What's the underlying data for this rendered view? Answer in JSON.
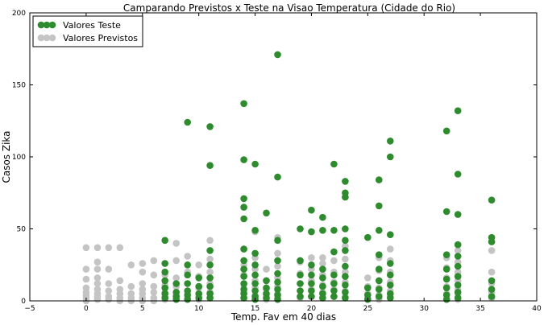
{
  "chart_data": {
    "type": "scatter",
    "title": "Camparando Previstos x Teste na Visao Temperatura (Cidade do Rio)",
    "xlabel": "Temp. Fav em 40 dias",
    "ylabel": "Casos Zika",
    "xlim": [
      -5,
      40
    ],
    "ylim": [
      0,
      200
    ],
    "xticks": [
      "−5",
      "0",
      "5",
      "10",
      "15",
      "20",
      "25",
      "30",
      "35",
      "40"
    ],
    "xtick_values": [
      -5,
      0,
      5,
      10,
      15,
      20,
      25,
      30,
      35,
      40
    ],
    "yticks": [
      "0",
      "50",
      "100",
      "150",
      "200"
    ],
    "ytick_values": [
      0,
      50,
      100,
      150,
      200
    ],
    "grid": false,
    "legend_position": "top-left",
    "series": [
      {
        "name": "Valores Teste",
        "color": "#2e8b2e",
        "points": [
          [
            7,
            42
          ],
          [
            7,
            26
          ],
          [
            7,
            20
          ],
          [
            7,
            14
          ],
          [
            7,
            9
          ],
          [
            7,
            5
          ],
          [
            7,
            2
          ],
          [
            8,
            12
          ],
          [
            8,
            6
          ],
          [
            8,
            3
          ],
          [
            8,
            1
          ],
          [
            9,
            124
          ],
          [
            9,
            25
          ],
          [
            9,
            18
          ],
          [
            9,
            12
          ],
          [
            9,
            7
          ],
          [
            9,
            4
          ],
          [
            9,
            1
          ],
          [
            10,
            16
          ],
          [
            10,
            10
          ],
          [
            10,
            5
          ],
          [
            10,
            2
          ],
          [
            11,
            121
          ],
          [
            11,
            94
          ],
          [
            11,
            35
          ],
          [
            11,
            25
          ],
          [
            11,
            16
          ],
          [
            11,
            10
          ],
          [
            11,
            5
          ],
          [
            11,
            2
          ],
          [
            14,
            137
          ],
          [
            14,
            98
          ],
          [
            14,
            71
          ],
          [
            14,
            65
          ],
          [
            14,
            57
          ],
          [
            14,
            36
          ],
          [
            14,
            28
          ],
          [
            14,
            22
          ],
          [
            14,
            17
          ],
          [
            14,
            12
          ],
          [
            14,
            8
          ],
          [
            14,
            5
          ],
          [
            14,
            2
          ],
          [
            15,
            95
          ],
          [
            15,
            49
          ],
          [
            15,
            33
          ],
          [
            15,
            25
          ],
          [
            15,
            18
          ],
          [
            15,
            12
          ],
          [
            15,
            7
          ],
          [
            15,
            3
          ],
          [
            15,
            1
          ],
          [
            16,
            61
          ],
          [
            16,
            14
          ],
          [
            16,
            9
          ],
          [
            16,
            5
          ],
          [
            16,
            2
          ],
          [
            17,
            171
          ],
          [
            17,
            86
          ],
          [
            17,
            42
          ],
          [
            17,
            28
          ],
          [
            17,
            19
          ],
          [
            17,
            13
          ],
          [
            17,
            8
          ],
          [
            17,
            4
          ],
          [
            17,
            1
          ],
          [
            19,
            50
          ],
          [
            19,
            28
          ],
          [
            19,
            18
          ],
          [
            19,
            12
          ],
          [
            19,
            7
          ],
          [
            19,
            3
          ],
          [
            20,
            63
          ],
          [
            20,
            48
          ],
          [
            20,
            25
          ],
          [
            20,
            18
          ],
          [
            20,
            12
          ],
          [
            20,
            7
          ],
          [
            20,
            3
          ],
          [
            21,
            58
          ],
          [
            21,
            49
          ],
          [
            21,
            22
          ],
          [
            21,
            16
          ],
          [
            21,
            10
          ],
          [
            21,
            5
          ],
          [
            21,
            2
          ],
          [
            22,
            95
          ],
          [
            22,
            49
          ],
          [
            22,
            34
          ],
          [
            22,
            18
          ],
          [
            22,
            12
          ],
          [
            22,
            7
          ],
          [
            22,
            3
          ],
          [
            23,
            83
          ],
          [
            23,
            75
          ],
          [
            23,
            72
          ],
          [
            23,
            50
          ],
          [
            23,
            42
          ],
          [
            23,
            35
          ],
          [
            23,
            24
          ],
          [
            23,
            17
          ],
          [
            23,
            11
          ],
          [
            23,
            6
          ],
          [
            23,
            2
          ],
          [
            25,
            44
          ],
          [
            25,
            9
          ],
          [
            25,
            4
          ],
          [
            25,
            1
          ],
          [
            26,
            84
          ],
          [
            26,
            66
          ],
          [
            26,
            49
          ],
          [
            26,
            32
          ],
          [
            26,
            22
          ],
          [
            26,
            14
          ],
          [
            26,
            8
          ],
          [
            26,
            3
          ],
          [
            27,
            111
          ],
          [
            27,
            100
          ],
          [
            27,
            46
          ],
          [
            27,
            26
          ],
          [
            27,
            18
          ],
          [
            27,
            11
          ],
          [
            27,
            5
          ],
          [
            27,
            2
          ],
          [
            32,
            118
          ],
          [
            32,
            62
          ],
          [
            32,
            32
          ],
          [
            32,
            22
          ],
          [
            32,
            15
          ],
          [
            32,
            9
          ],
          [
            32,
            4
          ],
          [
            32,
            1
          ],
          [
            33,
            132
          ],
          [
            33,
            88
          ],
          [
            33,
            60
          ],
          [
            33,
            39
          ],
          [
            33,
            31
          ],
          [
            33,
            24
          ],
          [
            33,
            17
          ],
          [
            33,
            11
          ],
          [
            33,
            6
          ],
          [
            33,
            2
          ],
          [
            36,
            70
          ],
          [
            36,
            44
          ],
          [
            36,
            41
          ],
          [
            36,
            14
          ],
          [
            36,
            8
          ],
          [
            36,
            3
          ]
        ]
      },
      {
        "name": "Valores Previstos",
        "color": "#c4c4c4",
        "points": [
          [
            0,
            37
          ],
          [
            0,
            22
          ],
          [
            0,
            15
          ],
          [
            0,
            9
          ],
          [
            0,
            6
          ],
          [
            0,
            4
          ],
          [
            0,
            2
          ],
          [
            0,
            0
          ],
          [
            1,
            37
          ],
          [
            1,
            27
          ],
          [
            1,
            22
          ],
          [
            1,
            16
          ],
          [
            1,
            12
          ],
          [
            1,
            8
          ],
          [
            1,
            5
          ],
          [
            1,
            3
          ],
          [
            1,
            1
          ],
          [
            2,
            37
          ],
          [
            2,
            22
          ],
          [
            2,
            12
          ],
          [
            2,
            7
          ],
          [
            2,
            3
          ],
          [
            2,
            1
          ],
          [
            3,
            37
          ],
          [
            3,
            14
          ],
          [
            3,
            8
          ],
          [
            3,
            5
          ],
          [
            3,
            2
          ],
          [
            3,
            0
          ],
          [
            4,
            25
          ],
          [
            4,
            10
          ],
          [
            4,
            5
          ],
          [
            4,
            2
          ],
          [
            4,
            0
          ],
          [
            5,
            26
          ],
          [
            5,
            20
          ],
          [
            5,
            12
          ],
          [
            5,
            8
          ],
          [
            5,
            5
          ],
          [
            5,
            2
          ],
          [
            5,
            0
          ],
          [
            6,
            28
          ],
          [
            6,
            18
          ],
          [
            6,
            10
          ],
          [
            6,
            6
          ],
          [
            6,
            2
          ],
          [
            6,
            0
          ],
          [
            7,
            26
          ],
          [
            7,
            18
          ],
          [
            7,
            11
          ],
          [
            7,
            6
          ],
          [
            7,
            3
          ],
          [
            7,
            1
          ],
          [
            8,
            40
          ],
          [
            8,
            28
          ],
          [
            8,
            16
          ],
          [
            8,
            10
          ],
          [
            8,
            4
          ],
          [
            8,
            1
          ],
          [
            9,
            31
          ],
          [
            9,
            20
          ],
          [
            9,
            12
          ],
          [
            9,
            6
          ],
          [
            9,
            2
          ],
          [
            10,
            25
          ],
          [
            10,
            17
          ],
          [
            10,
            9
          ],
          [
            10,
            4
          ],
          [
            10,
            1
          ],
          [
            11,
            42
          ],
          [
            11,
            29
          ],
          [
            11,
            20
          ],
          [
            11,
            12
          ],
          [
            11,
            6
          ],
          [
            11,
            2
          ],
          [
            14,
            36
          ],
          [
            14,
            25
          ],
          [
            14,
            18
          ],
          [
            14,
            11
          ],
          [
            14,
            6
          ],
          [
            14,
            2
          ],
          [
            15,
            48
          ],
          [
            15,
            30
          ],
          [
            15,
            22
          ],
          [
            15,
            14
          ],
          [
            15,
            9
          ],
          [
            15,
            4
          ],
          [
            15,
            1
          ],
          [
            16,
            22
          ],
          [
            16,
            14
          ],
          [
            16,
            8
          ],
          [
            16,
            4
          ],
          [
            16,
            1
          ],
          [
            17,
            44
          ],
          [
            17,
            33
          ],
          [
            17,
            24
          ],
          [
            17,
            16
          ],
          [
            17,
            10
          ],
          [
            17,
            5
          ],
          [
            17,
            2
          ],
          [
            19,
            27
          ],
          [
            19,
            19
          ],
          [
            19,
            12
          ],
          [
            19,
            7
          ],
          [
            19,
            2
          ],
          [
            20,
            30
          ],
          [
            20,
            22
          ],
          [
            20,
            14
          ],
          [
            20,
            8
          ],
          [
            20,
            3
          ],
          [
            21,
            30
          ],
          [
            21,
            26
          ],
          [
            21,
            18
          ],
          [
            21,
            11
          ],
          [
            21,
            6
          ],
          [
            21,
            2
          ],
          [
            22,
            28
          ],
          [
            22,
            20
          ],
          [
            22,
            13
          ],
          [
            22,
            8
          ],
          [
            22,
            3
          ],
          [
            23,
            50
          ],
          [
            23,
            38
          ],
          [
            23,
            29
          ],
          [
            23,
            20
          ],
          [
            23,
            13
          ],
          [
            23,
            7
          ],
          [
            23,
            3
          ],
          [
            25,
            16
          ],
          [
            25,
            10
          ],
          [
            25,
            5
          ],
          [
            25,
            2
          ],
          [
            26,
            30
          ],
          [
            26,
            21
          ],
          [
            26,
            14
          ],
          [
            26,
            9
          ],
          [
            26,
            4
          ],
          [
            26,
            1
          ],
          [
            27,
            36
          ],
          [
            27,
            28
          ],
          [
            27,
            20
          ],
          [
            27,
            13
          ],
          [
            27,
            7
          ],
          [
            27,
            3
          ],
          [
            32,
            30
          ],
          [
            32,
            23
          ],
          [
            32,
            16
          ],
          [
            32,
            10
          ],
          [
            32,
            5
          ],
          [
            32,
            1
          ],
          [
            33,
            39
          ],
          [
            33,
            35
          ],
          [
            33,
            27
          ],
          [
            33,
            20
          ],
          [
            33,
            14
          ],
          [
            33,
            8
          ],
          [
            33,
            4
          ],
          [
            33,
            1
          ],
          [
            36,
            35
          ],
          [
            36,
            20
          ],
          [
            36,
            12
          ],
          [
            36,
            6
          ],
          [
            36,
            2
          ]
        ]
      }
    ]
  }
}
